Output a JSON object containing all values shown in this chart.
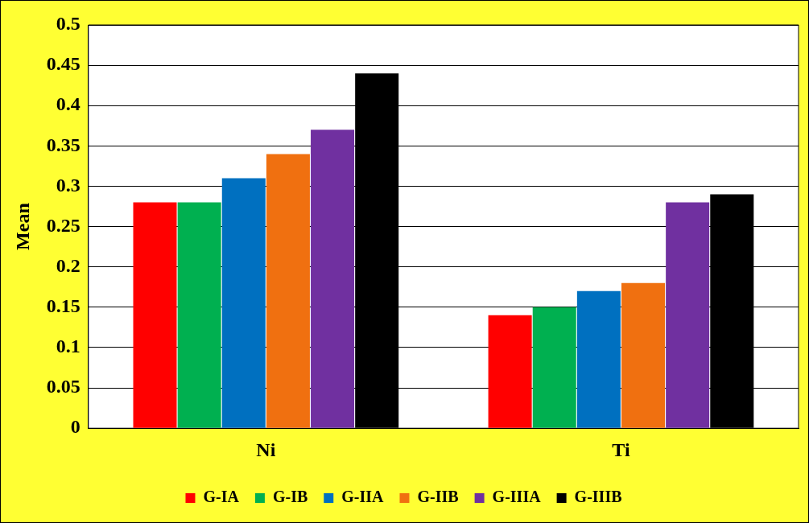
{
  "chart_data": {
    "type": "bar",
    "ylabel": "Mean",
    "categories": [
      "Ni",
      "Ti"
    ],
    "series": [
      {
        "name": "G-IA",
        "color": "#ff0000",
        "values": [
          0.28,
          0.14
        ]
      },
      {
        "name": "G-IB",
        "color": "#00b050",
        "values": [
          0.28,
          0.15
        ]
      },
      {
        "name": "G-IIA",
        "color": "#0070c0",
        "values": [
          0.31,
          0.17
        ]
      },
      {
        "name": "G-IIB",
        "color": "#f07010",
        "values": [
          0.34,
          0.18
        ]
      },
      {
        "name": "G-IIIA",
        "color": "#7030a0",
        "values": [
          0.37,
          0.28
        ]
      },
      {
        "name": "G-IIIB",
        "color": "#000000",
        "values": [
          0.44,
          0.29
        ]
      }
    ],
    "ylim": [
      0,
      0.5
    ],
    "yticks": [
      0,
      0.05,
      0.1,
      0.15,
      0.2,
      0.25,
      0.3,
      0.35,
      0.4,
      0.45,
      0.5
    ],
    "grid": "y",
    "legend": "bottom"
  }
}
